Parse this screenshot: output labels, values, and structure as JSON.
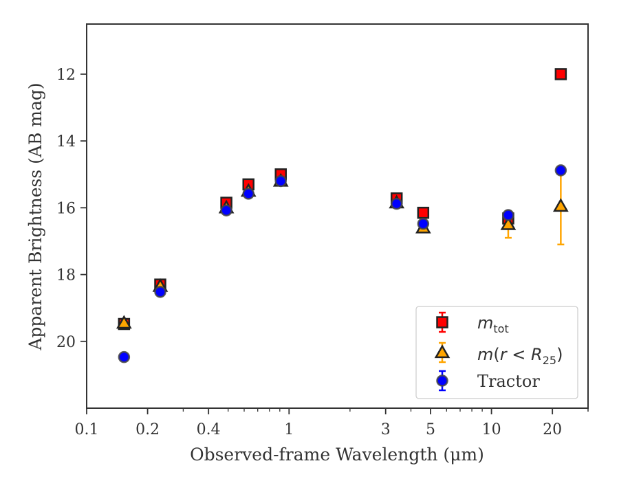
{
  "chart_data": {
    "type": "scatter",
    "xlabel": "Observed-frame Wavelength (μm)",
    "ylabel": "Apparent Brightness (AB mag)",
    "x_scale": "log",
    "xlim": [
      0.1,
      30
    ],
    "ylim": [
      22.0,
      10.5
    ],
    "y_inverted": true,
    "x_ticks": [
      0.1,
      0.2,
      0.4,
      1,
      3,
      5,
      10,
      20
    ],
    "x_tick_labels": [
      "0.1",
      "0.2",
      "0.4",
      "1",
      "3",
      "5",
      "10",
      "20"
    ],
    "y_ticks": [
      12,
      14,
      16,
      18,
      20
    ],
    "y_tick_labels": [
      "12",
      "14",
      "16",
      "18",
      "20"
    ],
    "grid": false,
    "legend_position": "lower-right",
    "series": [
      {
        "name": "m_tot",
        "legend_label": "m_tot",
        "marker": "square",
        "color": "#ff0000",
        "edge_color": "#222222",
        "errorbar_color": "#ff0000",
        "points": [
          {
            "x": 0.153,
            "y": 19.48,
            "err": 0.05
          },
          {
            "x": 0.231,
            "y": 18.3,
            "err": 0.05
          },
          {
            "x": 0.49,
            "y": 15.85,
            "err": 0.05
          },
          {
            "x": 0.63,
            "y": 15.3,
            "err": 0.05
          },
          {
            "x": 0.91,
            "y": 15.0,
            "err": 0.05
          },
          {
            "x": 3.4,
            "y": 15.72,
            "err": 0.05
          },
          {
            "x": 4.6,
            "y": 16.15,
            "err": 0.05
          },
          {
            "x": 12.1,
            "y": 16.32,
            "err": 0.05
          },
          {
            "x": 22.0,
            "y": 12.0,
            "err": 0.05
          }
        ]
      },
      {
        "name": "m(r<R25)",
        "legend_label": "m(r < R25)",
        "marker": "triangle",
        "color": "#ffa500",
        "edge_color": "#222222",
        "errorbar_color": "#ffa500",
        "points": [
          {
            "x": 0.153,
            "y": 19.45,
            "err": 0.05
          },
          {
            "x": 0.231,
            "y": 18.35,
            "err": 0.05
          },
          {
            "x": 0.49,
            "y": 16.0,
            "err": 0.05
          },
          {
            "x": 0.63,
            "y": 15.5,
            "err": 0.05
          },
          {
            "x": 0.91,
            "y": 15.2,
            "err": 0.05
          },
          {
            "x": 3.4,
            "y": 15.85,
            "err": 0.05
          },
          {
            "x": 4.6,
            "y": 16.6,
            "err": 0.1
          },
          {
            "x": 12.1,
            "y": 16.5,
            "err": 0.4
          },
          {
            "x": 22.0,
            "y": 15.95,
            "err": 1.15
          }
        ]
      },
      {
        "name": "Tractor",
        "legend_label": "Tractor",
        "marker": "circle",
        "color": "#0000ff",
        "edge_color": "#444444",
        "errorbar_color": "#0000ff",
        "points": [
          {
            "x": 0.153,
            "y": 20.47,
            "err": 0.05
          },
          {
            "x": 0.231,
            "y": 18.52,
            "err": 0.05
          },
          {
            "x": 0.49,
            "y": 16.08,
            "err": 0.05
          },
          {
            "x": 0.63,
            "y": 15.58,
            "err": 0.05
          },
          {
            "x": 0.91,
            "y": 15.2,
            "err": 0.05
          },
          {
            "x": 3.4,
            "y": 15.88,
            "err": 0.05
          },
          {
            "x": 4.6,
            "y": 16.48,
            "err": 0.05
          },
          {
            "x": 12.1,
            "y": 16.22,
            "err": 0.05
          },
          {
            "x": 22.0,
            "y": 14.88,
            "err": 0.05
          }
        ]
      }
    ]
  }
}
